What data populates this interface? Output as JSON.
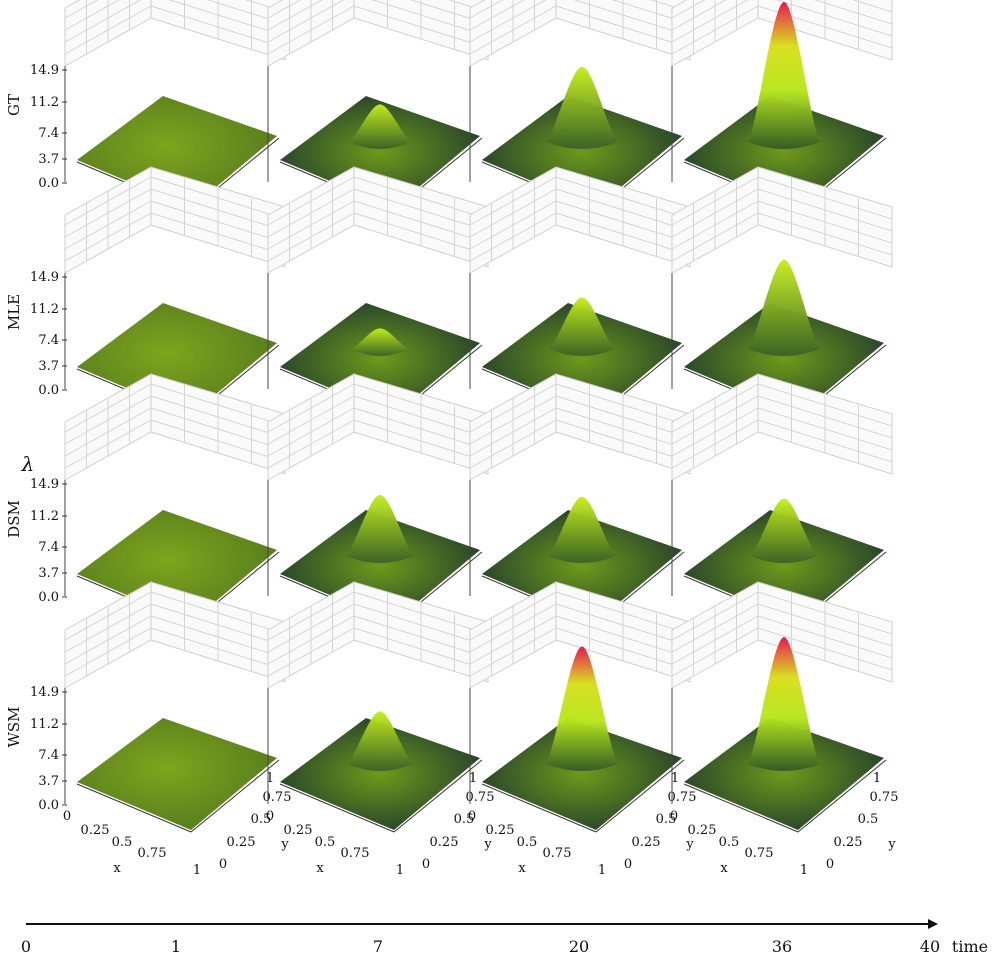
{
  "chart_data": {
    "type": "surface3d",
    "zlabel": "λ",
    "zticks": [
      "14.9",
      "11.2",
      "7.4",
      "3.7",
      "0.0"
    ],
    "xlabel": "x",
    "ylabel": "y",
    "xticks": [
      "0",
      "0.25",
      "0.5",
      "0.75",
      "1"
    ],
    "yticks": [
      "0",
      "0.25",
      "0.5",
      "0.75",
      "1"
    ],
    "zlim": [
      0,
      14.9
    ],
    "rows": [
      {
        "label": "GT",
        "peaks": [
          1.2,
          4.0,
          8.0,
          14.9
        ]
      },
      {
        "label": "MLE",
        "peaks": [
          1.3,
          2.2,
          5.5,
          9.5
        ]
      },
      {
        "label": "DSM",
        "peaks": [
          1.8,
          6.5,
          6.3,
          6.1
        ]
      },
      {
        "label": "WSM",
        "peaks": [
          1.3,
          5.6,
          12.5,
          13.5
        ]
      }
    ],
    "timeline": {
      "label": "time",
      "ticks": [
        "0",
        "1",
        "7",
        "20",
        "36",
        "40"
      ],
      "values": [
        0,
        1,
        7,
        20,
        36,
        40
      ]
    },
    "colormap": {
      "low": "#1e3a2e",
      "mid": "#a8e01a",
      "high": "#e8114e"
    }
  }
}
